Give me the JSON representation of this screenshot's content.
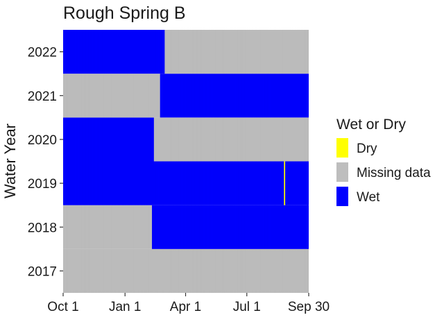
{
  "chart_data": {
    "type": "heatmap",
    "title": "Rough Spring B",
    "xlabel": "",
    "ylabel": "Water Year",
    "x_range": [
      "Oct 1",
      "Sep 30"
    ],
    "x_ticks": [
      "Oct 1",
      "Jan 1",
      "Apr 1",
      "Jul 1",
      "Sep 30"
    ],
    "y_categories": [
      "2017",
      "2018",
      "2019",
      "2020",
      "2021",
      "2022"
    ],
    "legend": {
      "title": "Wet or Dry",
      "placement": "right",
      "entries": [
        {
          "label": "Dry",
          "color": "#ffff00"
        },
        {
          "label": "Missing data",
          "color": "#bebebe"
        },
        {
          "label": "Wet",
          "color": "#0000ff"
        }
      ]
    },
    "grid": false,
    "years": [
      {
        "year": "2017",
        "segments": [
          {
            "status": "Missing data",
            "start": "Oct 1",
            "end": "Sep 30"
          }
        ]
      },
      {
        "year": "2018",
        "segments": [
          {
            "status": "Missing data",
            "start": "Oct 1",
            "end": "Feb 9"
          },
          {
            "status": "Wet",
            "start": "Feb 10",
            "end": "Sep 30"
          }
        ]
      },
      {
        "year": "2019",
        "segments": [
          {
            "status": "Wet",
            "start": "Oct 1",
            "end": "Aug 25"
          },
          {
            "status": "Dry",
            "start": "Aug 26",
            "end": "Aug 26"
          },
          {
            "status": "Wet",
            "start": "Aug 27",
            "end": "Sep 30"
          }
        ]
      },
      {
        "year": "2020",
        "segments": [
          {
            "status": "Wet",
            "start": "Oct 1",
            "end": "Feb 12"
          },
          {
            "status": "Missing data",
            "start": "Feb 13",
            "end": "Sep 30"
          }
        ]
      },
      {
        "year": "2021",
        "segments": [
          {
            "status": "Missing data",
            "start": "Oct 1",
            "end": "Feb 21"
          },
          {
            "status": "Wet",
            "start": "Feb 22",
            "end": "Sep 30"
          }
        ]
      },
      {
        "year": "2022",
        "segments": [
          {
            "status": "Wet",
            "start": "Oct 1",
            "end": "Feb 28"
          },
          {
            "status": "Missing data",
            "start": "Mar 1",
            "end": "Sep 30"
          }
        ]
      }
    ]
  }
}
